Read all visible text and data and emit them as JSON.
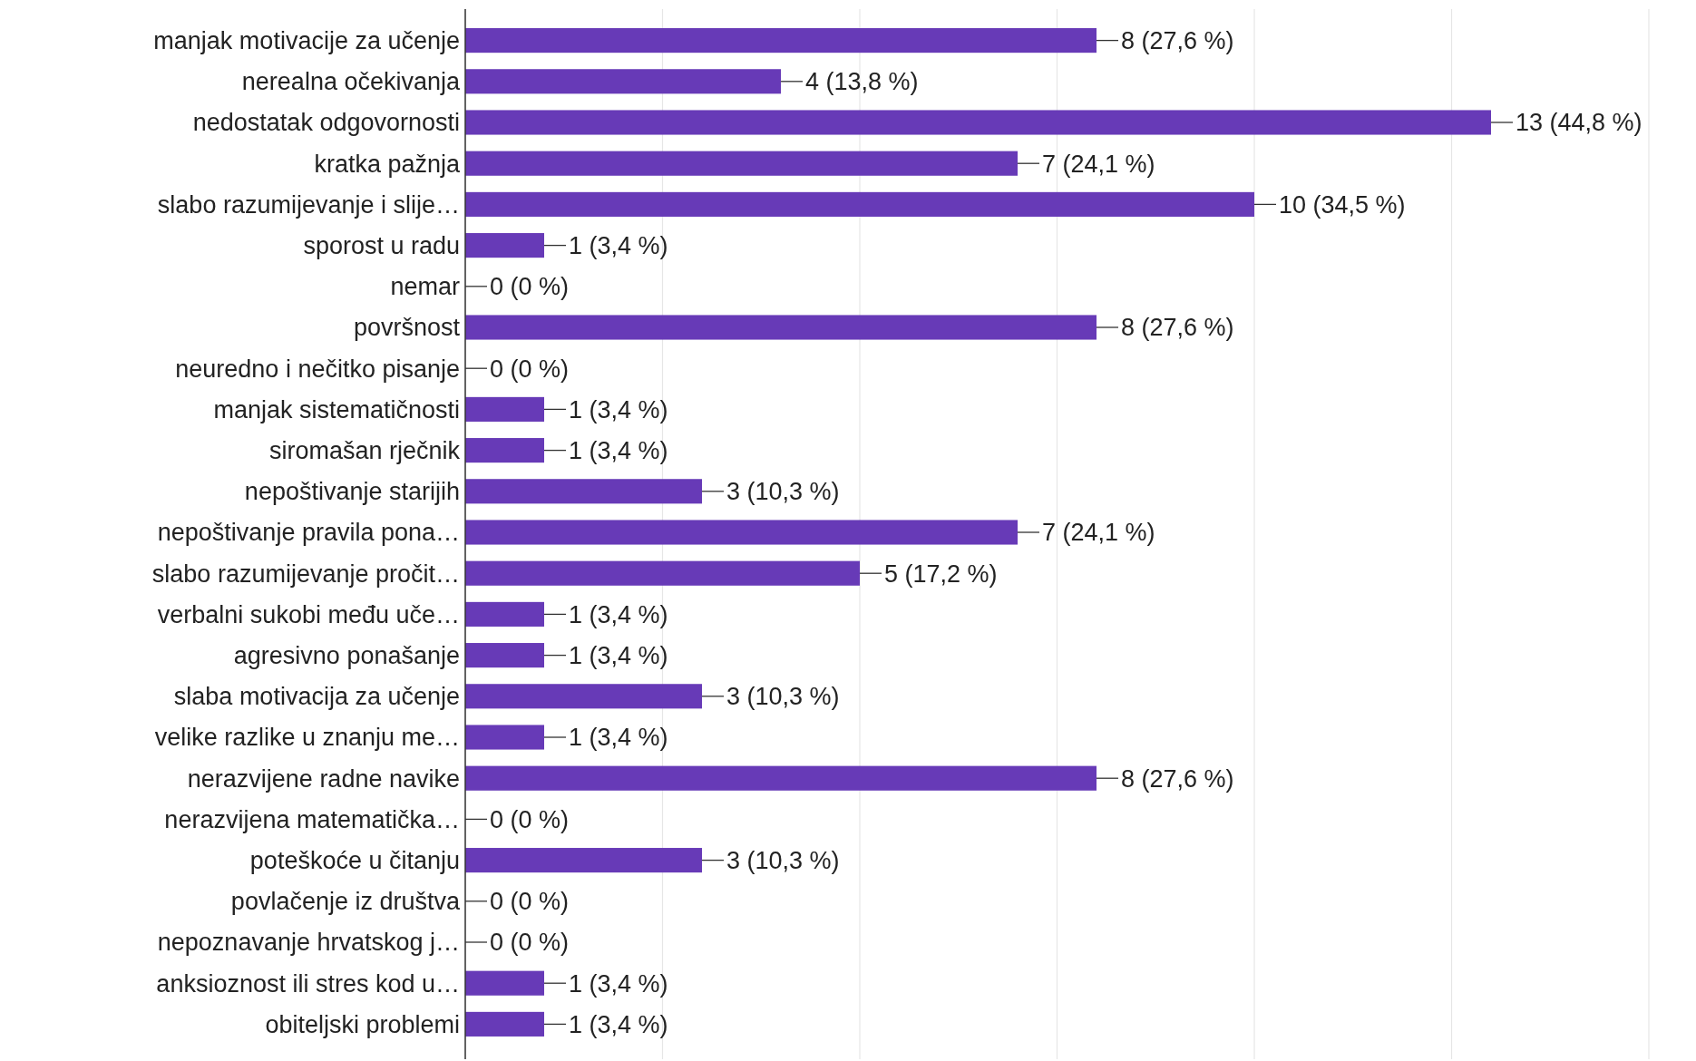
{
  "chart_data": {
    "type": "bar",
    "orientation": "horizontal",
    "color": "#673ab7",
    "grid": "x",
    "tick_labels": "y",
    "categories": [
      "manjak motivacije za učenje",
      "nerealna očekivanja",
      "nedostatak odgovornosti",
      "kratka pažnja",
      "slabo razumijevanje i slije…",
      "sporost u radu",
      "nemar",
      "površnost",
      "neuredno i nečitko pisanje",
      "manjak sistematičnosti",
      "siromašan rječnik",
      "nepoštivanje starijih",
      "nepoštivanje pravila pona…",
      "slabo razumijevanje pročit…",
      "verbalni sukobi među uče…",
      "agresivno ponašanje",
      "slaba motivacija za učenje",
      "velike razlike u znanju me…",
      "nerazvijene radne navike",
      "nerazvijena matematička…",
      "poteškoće u čitanju",
      "povlačenje iz društva",
      "nepoznavanje hrvatskog j…",
      "anksioznost ili stres kod u…",
      "obiteljski problemi"
    ],
    "values": [
      8,
      4,
      13,
      7,
      10,
      1,
      0,
      8,
      0,
      1,
      1,
      3,
      7,
      5,
      1,
      1,
      3,
      1,
      8,
      0,
      3,
      0,
      0,
      1,
      1
    ],
    "value_labels": [
      "8 (27,6 %)",
      "4 (13,8 %)",
      "13 (44,8 %)",
      "7 (24,1 %)",
      "10 (34,5 %)",
      "1 (3,4 %)",
      "0 (0 %)",
      "8 (27,6 %)",
      "0 (0 %)",
      "1 (3,4 %)",
      "1 (3,4 %)",
      "3 (10,3 %)",
      "7 (24,1 %)",
      "5 (17,2 %)",
      "1 (3,4 %)",
      "1 (3,4 %)",
      "3 (10,3 %)",
      "1 (3,4 %)",
      "8 (27,6 %)",
      "0 (0 %)",
      "3 (10,3 %)",
      "0 (0 %)",
      "0 (0 %)",
      "1 (3,4 %)",
      "1 (3,4 %)"
    ],
    "xlim": [
      0,
      15
    ],
    "xticks": [
      {
        "value": 0,
        "label": null
      },
      {
        "value": 2.5,
        "label": null
      },
      {
        "value": 5,
        "label": null
      },
      {
        "value": 7.5,
        "label": null
      },
      {
        "value": 10,
        "label": null
      },
      {
        "value": 12.5,
        "label": null
      },
      {
        "value": 15,
        "label": null
      }
    ]
  }
}
